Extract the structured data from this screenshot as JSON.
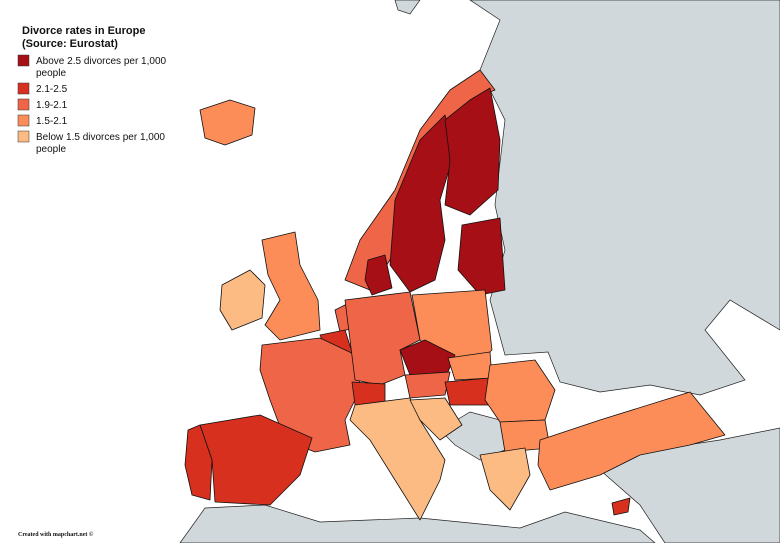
{
  "title_lines": [
    "Divorce rates in Europe",
    "(Source: Eurostat)"
  ],
  "legend": {
    "items": [
      {
        "label_lines": [
          "Above 2.5 divorces per 1,000",
          "people"
        ],
        "color": "#a50f15"
      },
      {
        "label_lines": [
          "2.1-2.5"
        ],
        "color": "#d7301f"
      },
      {
        "label_lines": [
          "1.9-2.1"
        ],
        "color": "#ef6548"
      },
      {
        "label_lines": [
          "1.5-2.1"
        ],
        "color": "#fc8d59"
      },
      {
        "label_lines": [
          "Below 1.5 divorces per 1,000",
          "people"
        ],
        "color": "#fdbb84"
      }
    ]
  },
  "credit": "Created with mapchart.net ©"
}
